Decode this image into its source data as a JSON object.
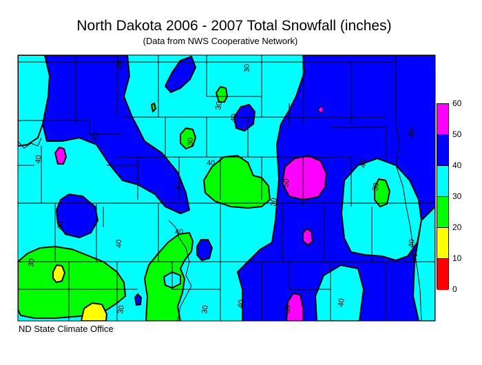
{
  "title": "North Dakota 2006 - 2007 Total Snowfall (inches)",
  "subtitle": "(Data from NWS Cooperative Network)",
  "credit": "ND State Climate Office",
  "legend": {
    "labels": [
      "60",
      "50",
      "40",
      "30",
      "20",
      "10",
      "0"
    ],
    "bins": [
      {
        "range": "50-60",
        "color": "#ff00ff"
      },
      {
        "range": "40-50",
        "color": "#0000ff"
      },
      {
        "range": "30-40",
        "color": "#00ffff"
      },
      {
        "range": "20-30",
        "color": "#00ff00"
      },
      {
        "range": "10-20",
        "color": "#ffff00"
      },
      {
        "range": "0-10",
        "color": "#ff0000"
      }
    ]
  },
  "contour_labels": [
    "40",
    "30",
    "30",
    "30",
    "30",
    "40",
    "40",
    "30",
    "40",
    "30",
    "50",
    "40",
    "30",
    "40",
    "30",
    "40",
    "30",
    "40",
    "30",
    "30",
    "40",
    "50",
    "40",
    "30",
    "40"
  ]
}
